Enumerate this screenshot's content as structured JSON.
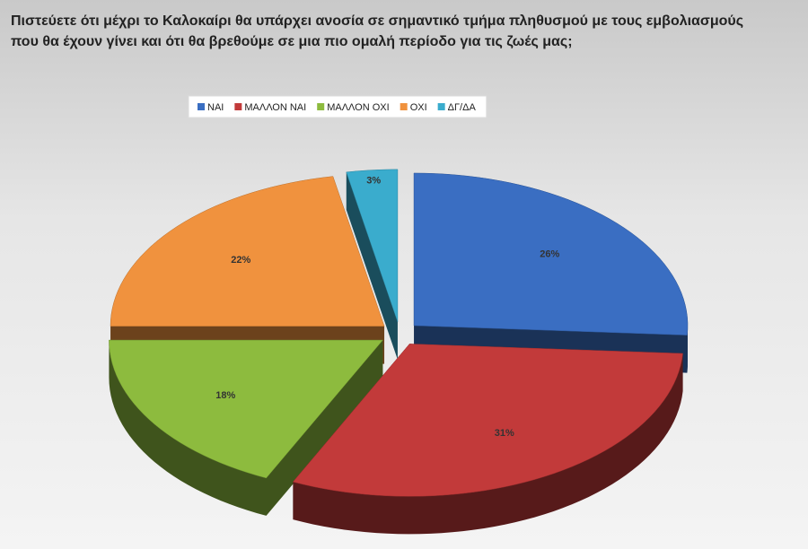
{
  "chart_data": {
    "type": "pie3d",
    "title": "Πιστεύετε ότι μέχρι το Καλοκαίρι θα υπάρχει ανοσία σε σημαντικό τμήμα πληθυσμού με τους εμβολιασμούς που θα έχουν γίνει και ότι θα βρεθούμε σε μια πιο ομαλή περίοδο για τις ζωές μας;",
    "categories": [
      "ΝΑΙ",
      "ΜΑΛΛΟΝ ΝΑΙ",
      "ΜΑΛΛΟΝ ΟΧΙ",
      "ΟΧΙ",
      "ΔΓ/ΔΑ"
    ],
    "values": [
      26,
      31,
      18,
      22,
      3
    ],
    "value_labels": [
      "26%",
      "31%",
      "18%",
      "22%",
      "3%"
    ],
    "colors": [
      "#3a6ec2",
      "#c23a3a",
      "#8dbb3e",
      "#f0923e",
      "#3aaccd"
    ],
    "legend": "top"
  }
}
